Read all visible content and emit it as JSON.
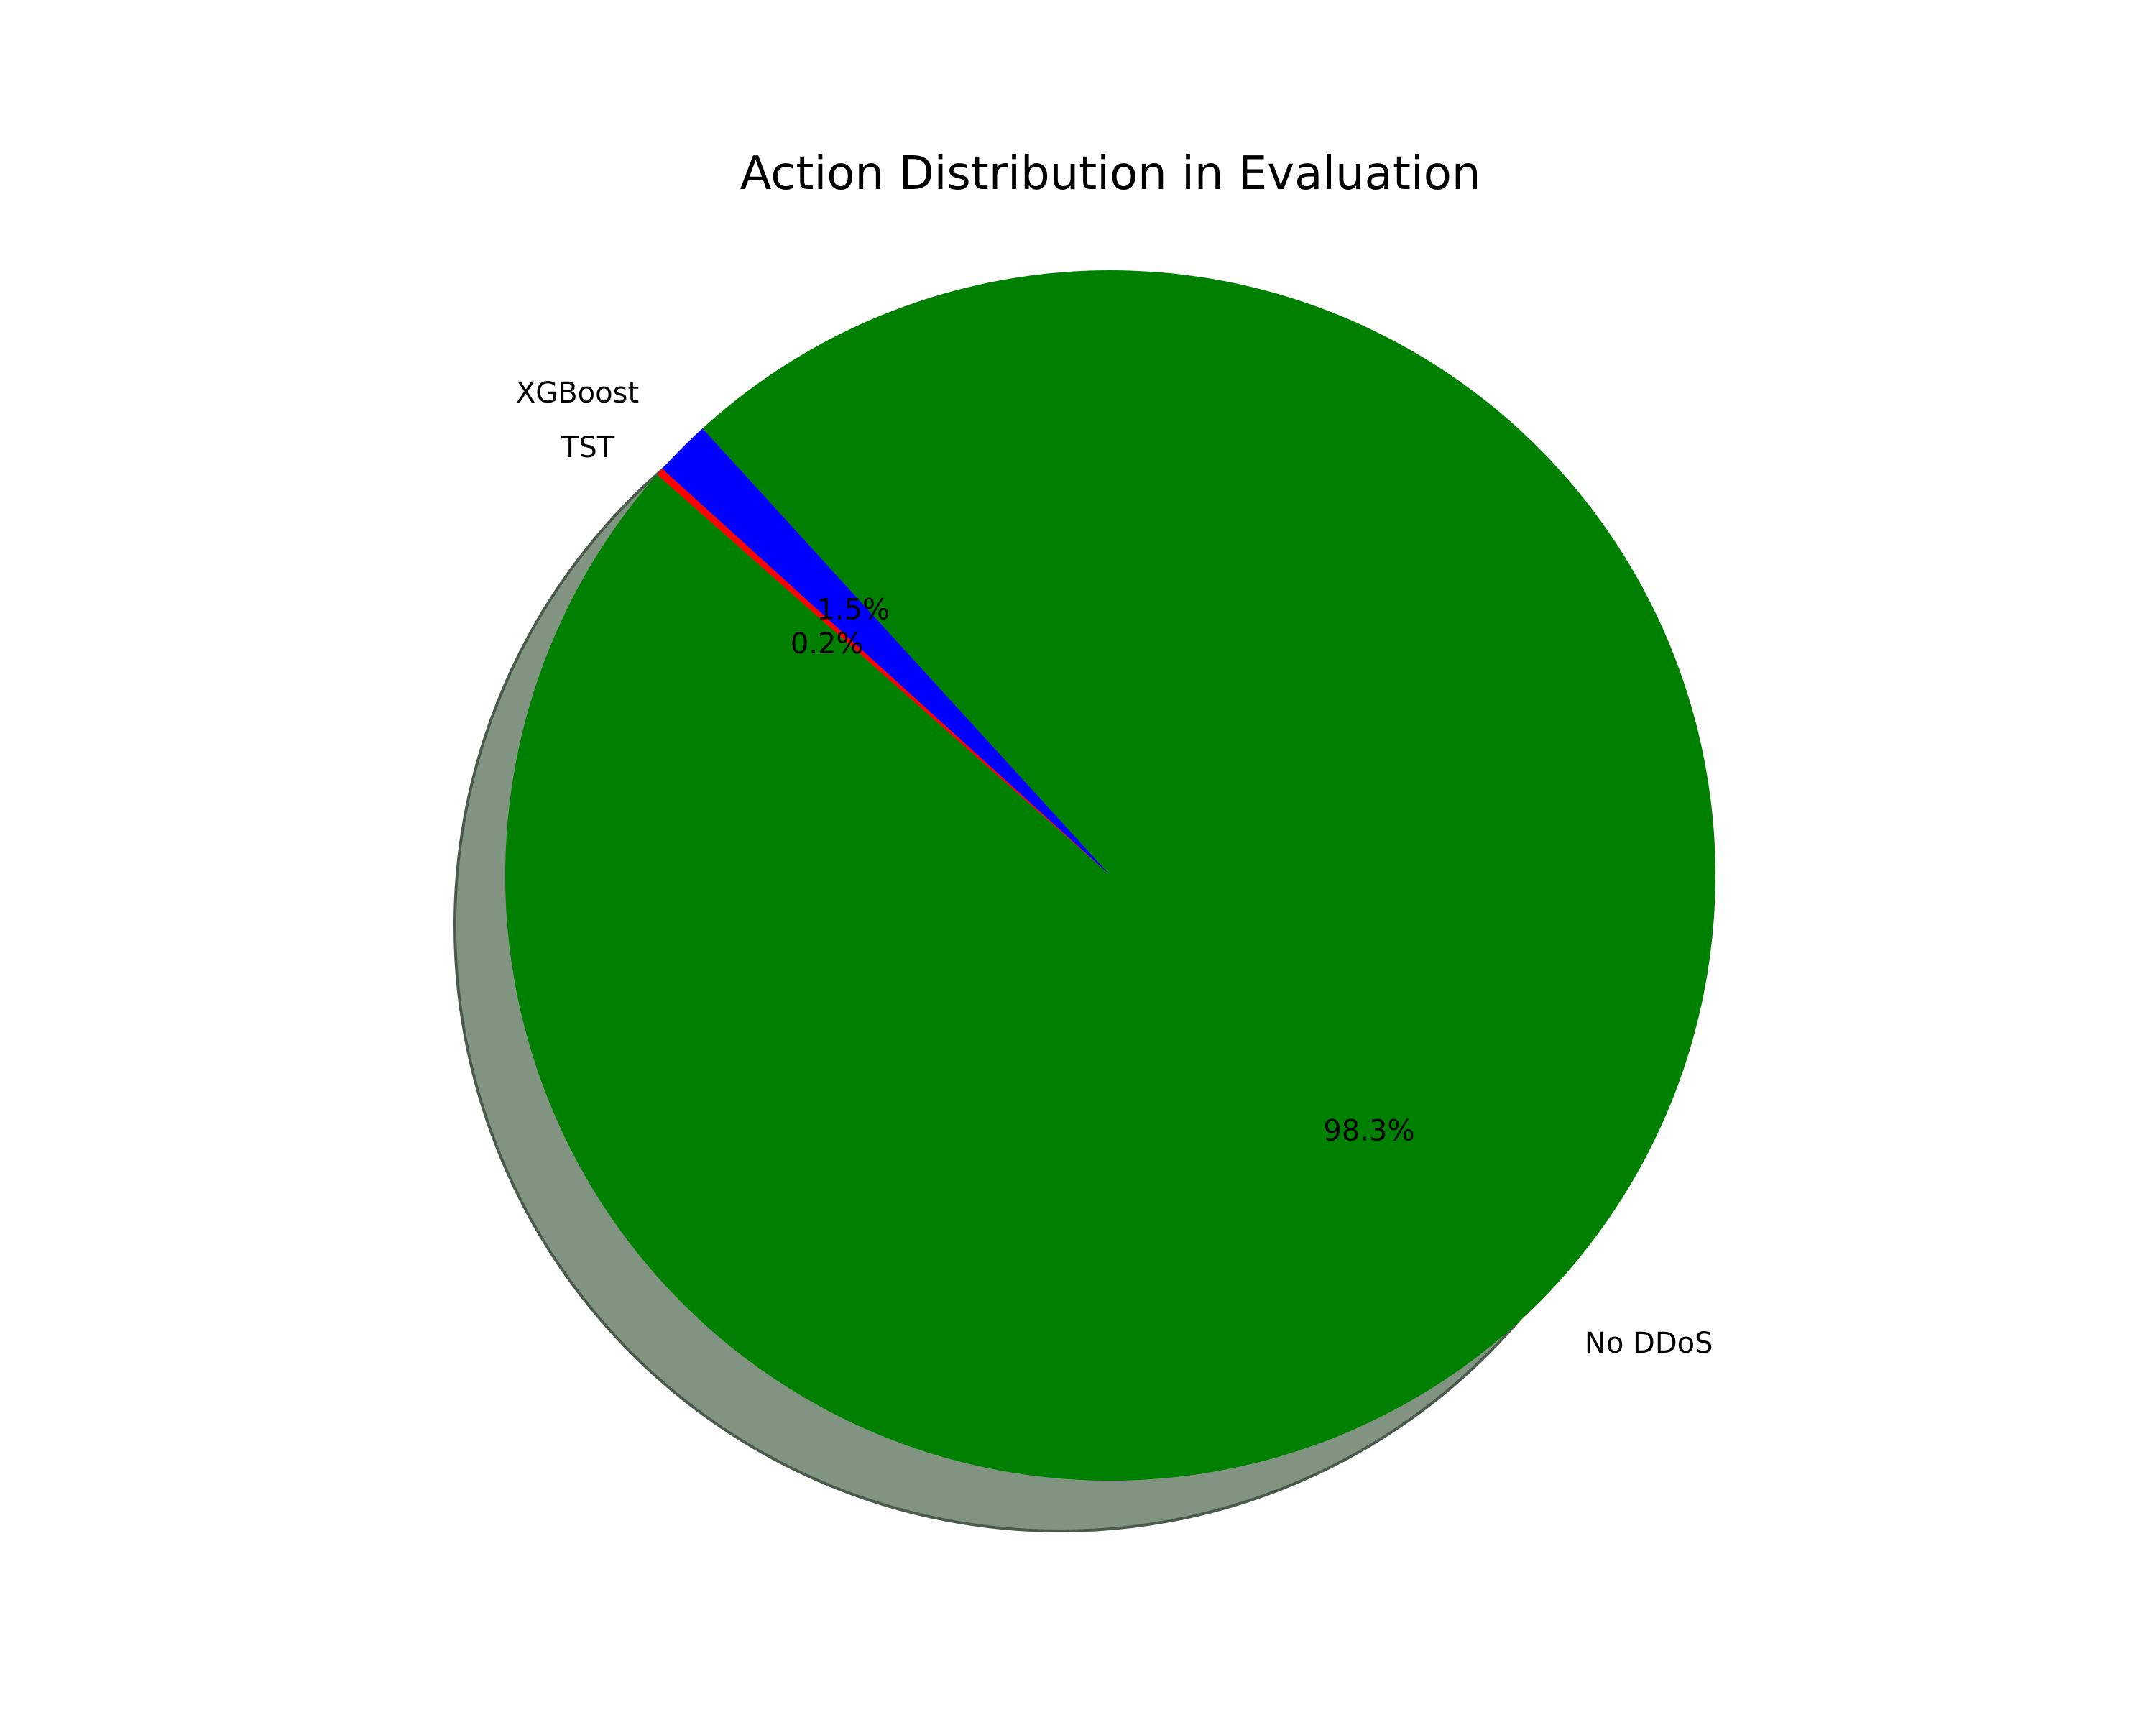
{
  "chart_data": {
    "type": "pie",
    "title": "Action Distribution in Evaluation",
    "slices": [
      {
        "label": "No DDoS",
        "value": 98.3,
        "pct_label": "98.3%",
        "color": "#008000"
      },
      {
        "label": "XGBoost",
        "value": 1.5,
        "pct_label": "1.5%",
        "color": "#0000ff"
      },
      {
        "label": "TST",
        "value": 0.2,
        "pct_label": "0.2%",
        "color": "#ff0000"
      }
    ],
    "shadow": true,
    "shadow_color": "#819482",
    "legend": "none"
  }
}
